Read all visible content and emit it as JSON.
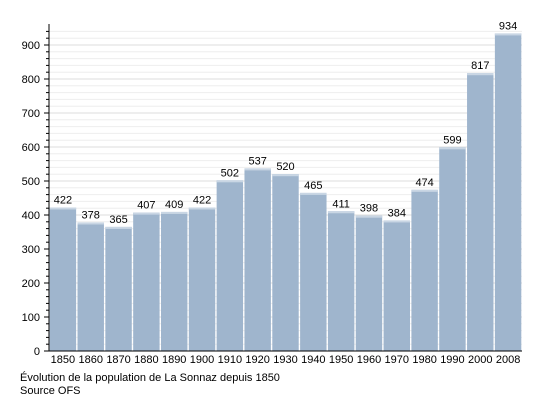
{
  "chart_data": {
    "type": "bar",
    "categories": [
      "1850",
      "1860",
      "1870",
      "1880",
      "1890",
      "1900",
      "1910",
      "1920",
      "1930",
      "1940",
      "1950",
      "1960",
      "1970",
      "1980",
      "1990",
      "2000",
      "2008"
    ],
    "values": [
      422,
      378,
      365,
      407,
      409,
      422,
      502,
      537,
      520,
      465,
      411,
      398,
      384,
      474,
      599,
      817,
      934
    ],
    "title": "",
    "xlabel": "",
    "ylabel": "",
    "ylim": [
      0,
      950
    ],
    "yticks": [
      0,
      100,
      200,
      300,
      400,
      500,
      600,
      700,
      800,
      900
    ],
    "grid": true,
    "data_labels": true,
    "bar_color": "#9fb5cd",
    "bar_highlight_color": "#c9d6e4",
    "grid_color": "#dcdcdc"
  },
  "caption": {
    "line1": "Évolution de la population de La Sonnaz depuis 1850",
    "line2": "Source OFS"
  }
}
